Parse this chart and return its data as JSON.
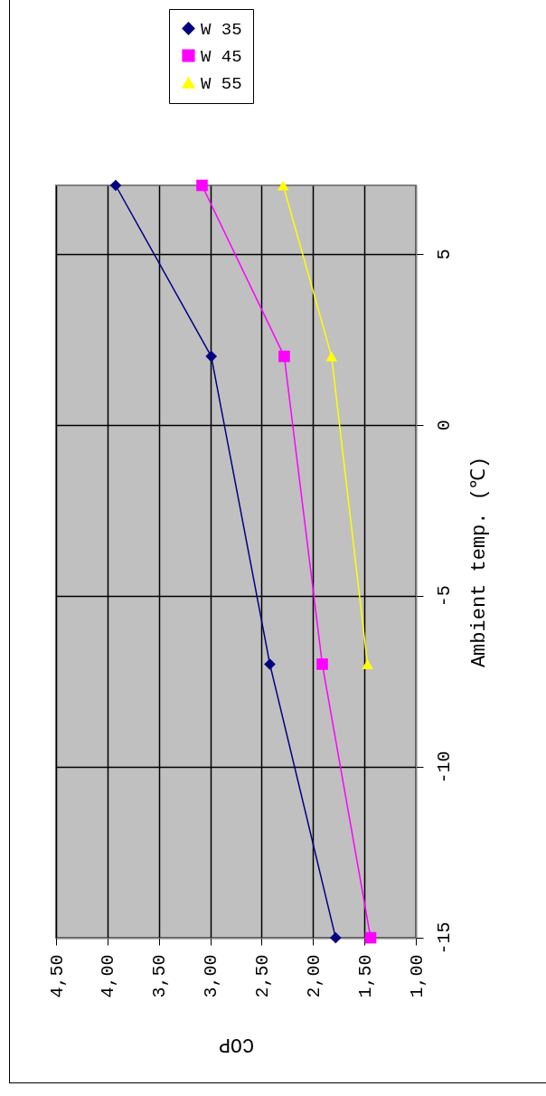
{
  "chart_data": {
    "type": "line",
    "xlabel": "COP",
    "ylabel": "Ambient temp. (℃)",
    "ylim": [
      -15,
      7
    ],
    "yticks": [
      -15,
      -10,
      -5,
      0,
      5
    ],
    "xlim": [
      4.5,
      1
    ],
    "xticks": [
      {
        "value": 4.5,
        "label": "4,50"
      },
      {
        "value": 4,
        "label": "4,00"
      },
      {
        "value": 3.5,
        "label": "3,50"
      },
      {
        "value": 3,
        "label": "3,00"
      },
      {
        "value": 2.5,
        "label": "2,50"
      },
      {
        "value": 2,
        "label": "2,00"
      },
      {
        "value": 1.5,
        "label": "1,50"
      },
      {
        "value": 1,
        "label": "1,00"
      }
    ],
    "grid": true,
    "legend": "top",
    "series": [
      {
        "name": "W 35",
        "color": "#000080",
        "marker": "diamond",
        "x": [
          1.78,
          2.42,
          2.99,
          3.92
        ],
        "values": [
          -15,
          -7,
          2,
          7
        ]
      },
      {
        "name": "W 45",
        "color": "#ff00ff",
        "marker": "square",
        "x": [
          1.44,
          1.91,
          2.28,
          3.08
        ],
        "values": [
          -15,
          -7,
          2,
          7
        ]
      },
      {
        "name": "W 55",
        "color": "#ffff00",
        "marker": "triangle",
        "x": [
          1.47,
          1.82,
          2.29
        ],
        "values": [
          -7,
          2,
          7
        ]
      }
    ]
  }
}
